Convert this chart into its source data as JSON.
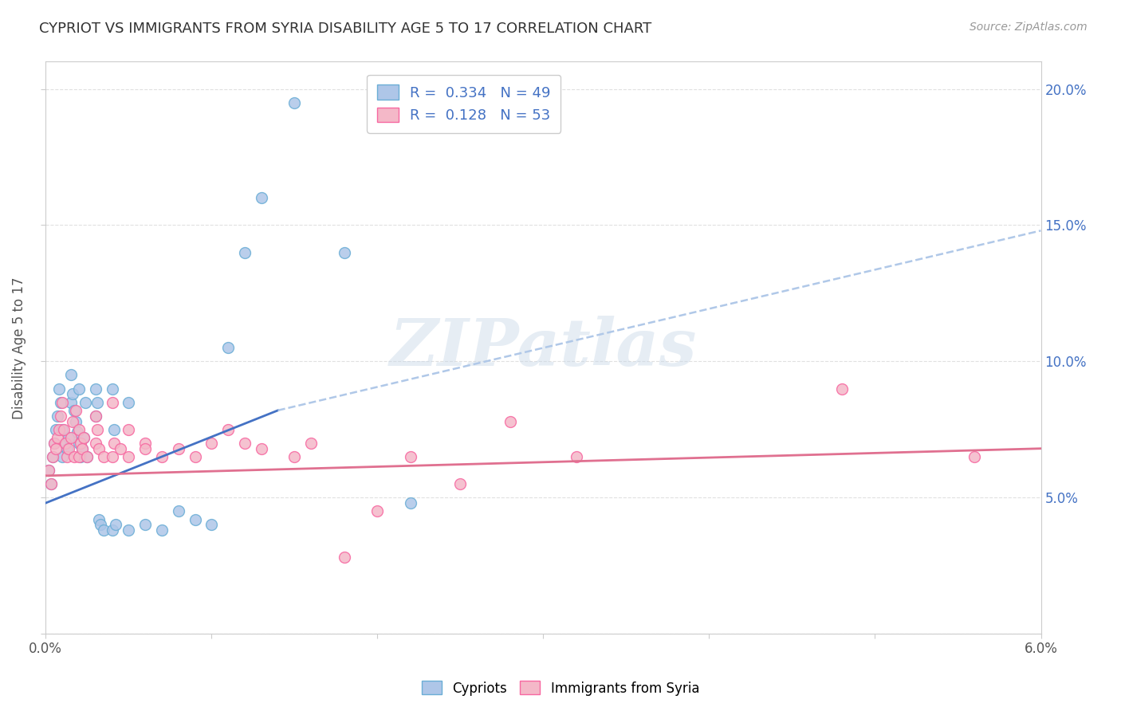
{
  "title": "CYPRIOT VS IMMIGRANTS FROM SYRIA DISABILITY AGE 5 TO 17 CORRELATION CHART",
  "source": "Source: ZipAtlas.com",
  "ylabel": "Disability Age 5 to 17",
  "xlim": [
    0.0,
    0.06
  ],
  "ylim": [
    0.0,
    0.21
  ],
  "xticks": [
    0.0,
    0.01,
    0.02,
    0.03,
    0.04,
    0.05,
    0.06
  ],
  "xtick_labels": [
    "0.0%",
    "",
    "",
    "",
    "",
    "",
    "6.0%"
  ],
  "yticks": [
    0.0,
    0.05,
    0.1,
    0.15,
    0.2
  ],
  "ytick_labels": [
    "",
    "5.0%",
    "10.0%",
    "15.0%",
    "20.0%"
  ],
  "cypriot_color": "#aec6e8",
  "cypriot_edge": "#6baed6",
  "syria_color": "#f4b8c8",
  "syria_edge": "#f768a1",
  "line_blue": "#4472c4",
  "line_pink": "#e07090",
  "dash_color": "#b0c8e8",
  "watermark": "ZIPatlas",
  "cypriot_x": [
    0.0002,
    0.0003,
    0.0004,
    0.0005,
    0.0006,
    0.0007,
    0.0008,
    0.0009,
    0.001,
    0.001,
    0.0012,
    0.0013,
    0.0014,
    0.0015,
    0.0015,
    0.0016,
    0.0017,
    0.0018,
    0.0019,
    0.002,
    0.002,
    0.0021,
    0.0022,
    0.0023,
    0.0024,
    0.0025,
    0.003,
    0.003,
    0.0031,
    0.0032,
    0.0033,
    0.0035,
    0.004,
    0.004,
    0.0041,
    0.0042,
    0.005,
    0.005,
    0.006,
    0.007,
    0.008,
    0.009,
    0.01,
    0.011,
    0.012,
    0.013,
    0.015,
    0.018,
    0.022
  ],
  "cypriot_y": [
    0.06,
    0.055,
    0.065,
    0.07,
    0.075,
    0.08,
    0.09,
    0.085,
    0.075,
    0.065,
    0.07,
    0.068,
    0.072,
    0.085,
    0.095,
    0.088,
    0.082,
    0.078,
    0.074,
    0.09,
    0.07,
    0.065,
    0.068,
    0.072,
    0.085,
    0.065,
    0.08,
    0.09,
    0.085,
    0.042,
    0.04,
    0.038,
    0.09,
    0.038,
    0.075,
    0.04,
    0.085,
    0.038,
    0.04,
    0.038,
    0.045,
    0.042,
    0.04,
    0.105,
    0.14,
    0.16,
    0.195,
    0.14,
    0.048
  ],
  "syria_x": [
    0.0002,
    0.0003,
    0.0004,
    0.0005,
    0.0006,
    0.0007,
    0.0008,
    0.0009,
    0.001,
    0.0011,
    0.0012,
    0.0013,
    0.0014,
    0.0015,
    0.0016,
    0.0017,
    0.0018,
    0.002,
    0.002,
    0.0021,
    0.0022,
    0.0023,
    0.0025,
    0.003,
    0.003,
    0.0031,
    0.0032,
    0.0035,
    0.004,
    0.004,
    0.0041,
    0.0045,
    0.005,
    0.005,
    0.006,
    0.006,
    0.007,
    0.008,
    0.009,
    0.01,
    0.011,
    0.012,
    0.013,
    0.015,
    0.016,
    0.018,
    0.02,
    0.022,
    0.025,
    0.028,
    0.032,
    0.048,
    0.056
  ],
  "syria_y": [
    0.06,
    0.055,
    0.065,
    0.07,
    0.068,
    0.072,
    0.075,
    0.08,
    0.085,
    0.075,
    0.07,
    0.065,
    0.068,
    0.072,
    0.078,
    0.065,
    0.082,
    0.075,
    0.065,
    0.07,
    0.068,
    0.072,
    0.065,
    0.08,
    0.07,
    0.075,
    0.068,
    0.065,
    0.085,
    0.065,
    0.07,
    0.068,
    0.075,
    0.065,
    0.07,
    0.068,
    0.065,
    0.068,
    0.065,
    0.07,
    0.075,
    0.07,
    0.068,
    0.065,
    0.07,
    0.028,
    0.045,
    0.065,
    0.055,
    0.078,
    0.065,
    0.09,
    0.065
  ],
  "blue_line_x": [
    0.0,
    0.06
  ],
  "blue_line_y": [
    0.048,
    0.135
  ],
  "dash_line_x": [
    0.014,
    0.06
  ],
  "dash_line_y": [
    0.082,
    0.148
  ],
  "pink_line_x": [
    0.0,
    0.06
  ],
  "pink_line_y": [
    0.058,
    0.068
  ]
}
